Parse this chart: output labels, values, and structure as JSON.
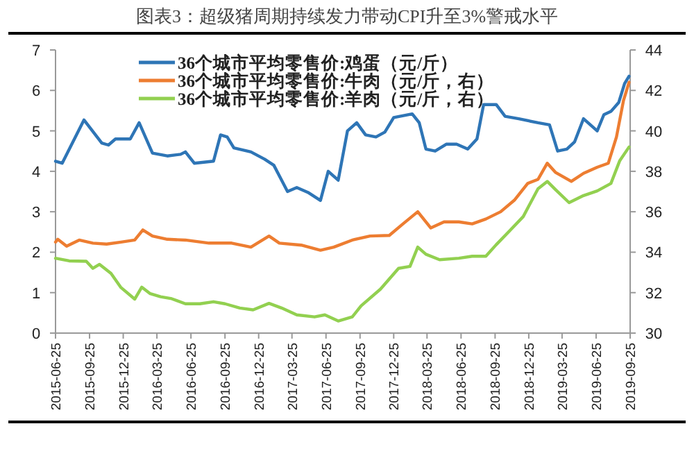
{
  "chart_data": {
    "type": "line",
    "title": "图表3：超级猪周期持续发力带动CPI升至3%警戒水平",
    "legend": "top",
    "line_style": "solid",
    "xlim": [
      "2015-06-25",
      "2019-09-25"
    ],
    "xticks": [
      "2015-06-25",
      "2015-09-25",
      "2015-12-25",
      "2016-03-25",
      "2016-06-25",
      "2016-09-25",
      "2016-12-25",
      "2017-03-25",
      "2017-06-25",
      "2017-09-25",
      "2017-12-25",
      "2018-03-25",
      "2018-06-25",
      "2018-09-25",
      "2018-12-25",
      "2019-03-25",
      "2019-06-25",
      "2019-09-25"
    ],
    "ylim": [
      0,
      7
    ],
    "yticks": [
      0,
      1,
      2,
      3,
      4,
      5,
      6,
      7
    ],
    "y2lim": [
      30,
      44
    ],
    "y2ticks": [
      30,
      32,
      34,
      36,
      38,
      40,
      42,
      44
    ],
    "series": [
      {
        "name": "36个城市平均零售价:鸡蛋（元/斤）",
        "color": "#2e75b6",
        "x": [
          "2015-06-25",
          "2015-07-13",
          "2015-09-10",
          "2015-10-28",
          "2015-11-15",
          "2015-12-04",
          "2016-01-13",
          "2016-02-06",
          "2016-03-13",
          "2016-04-22",
          "2016-05-28",
          "2016-06-10",
          "2016-07-04",
          "2016-08-25",
          "2016-09-13",
          "2016-10-01",
          "2016-10-19",
          "2016-12-04",
          "2017-01-10",
          "2017-02-04",
          "2017-03-13",
          "2017-04-07",
          "2017-05-07",
          "2017-06-10",
          "2017-07-01",
          "2017-07-28",
          "2017-08-22",
          "2017-09-16",
          "2017-10-10",
          "2017-11-07",
          "2017-12-01",
          "2017-12-25",
          "2018-02-13",
          "2018-03-04",
          "2018-03-22",
          "2018-04-16",
          "2018-05-16",
          "2018-06-13",
          "2018-07-13",
          "2018-08-07",
          "2018-08-25",
          "2018-09-28",
          "2018-10-22",
          "2018-11-28",
          "2019-01-19",
          "2019-02-19",
          "2019-03-13",
          "2019-04-07",
          "2019-04-28",
          "2019-05-22",
          "2019-06-28",
          "2019-07-16",
          "2019-08-04",
          "2019-08-25",
          "2019-09-10",
          "2019-09-22"
        ],
        "values": [
          4.25,
          4.2,
          5.27,
          4.7,
          4.65,
          4.8,
          4.8,
          5.2,
          4.45,
          4.38,
          4.42,
          4.48,
          4.2,
          4.25,
          4.9,
          4.85,
          4.58,
          4.48,
          4.3,
          4.15,
          3.5,
          3.6,
          3.48,
          3.28,
          4.0,
          3.78,
          5.0,
          5.2,
          4.9,
          4.85,
          4.97,
          5.33,
          5.42,
          5.2,
          4.55,
          4.5,
          4.67,
          4.67,
          4.55,
          4.8,
          5.65,
          5.65,
          5.36,
          5.3,
          5.2,
          5.15,
          4.5,
          4.55,
          4.73,
          5.3,
          5.0,
          5.4,
          5.48,
          5.7,
          6.17,
          6.35
        ]
      },
      {
        "name": "36个城市平均零售价:牛肉（元/斤，右）",
        "color": "#ed7d31",
        "axis": "y2",
        "x": [
          "2015-06-25",
          "2015-07-01",
          "2015-07-25",
          "2015-08-28",
          "2015-10-04",
          "2015-11-10",
          "2015-12-19",
          "2016-01-25",
          "2016-02-16",
          "2016-03-13",
          "2016-04-22",
          "2016-06-10",
          "2016-08-13",
          "2016-10-13",
          "2016-12-04",
          "2017-01-22",
          "2017-02-19",
          "2017-04-19",
          "2017-06-10",
          "2017-07-16",
          "2017-09-04",
          "2017-10-22",
          "2017-12-13",
          "2018-01-19",
          "2018-02-28",
          "2018-04-04",
          "2018-05-10",
          "2018-06-19",
          "2018-07-25",
          "2018-08-31",
          "2018-10-10",
          "2018-11-16",
          "2018-12-22",
          "2019-01-19",
          "2019-02-13",
          "2019-03-07",
          "2019-04-19",
          "2019-05-22",
          "2019-06-28",
          "2019-07-28",
          "2019-08-19",
          "2019-09-07",
          "2019-09-22"
        ],
        "values": [
          34.5,
          34.64,
          34.3,
          34.6,
          34.45,
          34.4,
          34.5,
          34.6,
          35.1,
          34.8,
          34.64,
          34.6,
          34.45,
          34.45,
          34.25,
          34.8,
          34.45,
          34.35,
          34.1,
          34.25,
          34.6,
          34.8,
          34.83,
          35.4,
          36.0,
          35.2,
          35.5,
          35.5,
          35.4,
          35.64,
          36.0,
          36.57,
          37.4,
          37.6,
          38.4,
          37.95,
          37.5,
          37.9,
          38.2,
          38.4,
          39.7,
          41.5,
          42.4
        ]
      },
      {
        "name": "36个城市平均零售价:羊肉（元/斤，右）",
        "color": "#92d050",
        "axis": "y2",
        "x": [
          "2015-06-25",
          "2015-08-01",
          "2015-09-16",
          "2015-10-04",
          "2015-10-22",
          "2015-11-22",
          "2015-12-19",
          "2016-01-25",
          "2016-02-13",
          "2016-03-07",
          "2016-04-04",
          "2016-05-04",
          "2016-06-10",
          "2016-07-19",
          "2016-08-25",
          "2016-09-25",
          "2016-11-04",
          "2016-12-10",
          "2017-01-22",
          "2017-02-25",
          "2017-04-07",
          "2017-05-25",
          "2017-06-22",
          "2017-07-28",
          "2017-09-04",
          "2017-09-28",
          "2017-11-19",
          "2018-01-07",
          "2018-02-07",
          "2018-02-28",
          "2018-03-22",
          "2018-04-28",
          "2018-06-19",
          "2018-07-25",
          "2018-08-31",
          "2018-09-28",
          "2018-11-04",
          "2018-12-10",
          "2019-01-19",
          "2019-02-13",
          "2019-03-07",
          "2019-04-13",
          "2019-05-22",
          "2019-06-28",
          "2019-08-04",
          "2019-08-28",
          "2019-09-22"
        ],
        "values": [
          33.7,
          33.57,
          33.55,
          33.2,
          33.4,
          32.95,
          32.25,
          31.68,
          32.27,
          31.95,
          31.8,
          31.7,
          31.45,
          31.45,
          31.55,
          31.45,
          31.24,
          31.15,
          31.47,
          31.24,
          30.9,
          30.8,
          30.9,
          30.6,
          30.8,
          31.35,
          32.17,
          33.2,
          33.3,
          34.25,
          33.9,
          33.63,
          33.7,
          33.8,
          33.8,
          34.37,
          35.07,
          35.76,
          37.14,
          37.5,
          37.1,
          36.45,
          36.8,
          37.03,
          37.4,
          38.53,
          39.2
        ]
      }
    ]
  }
}
